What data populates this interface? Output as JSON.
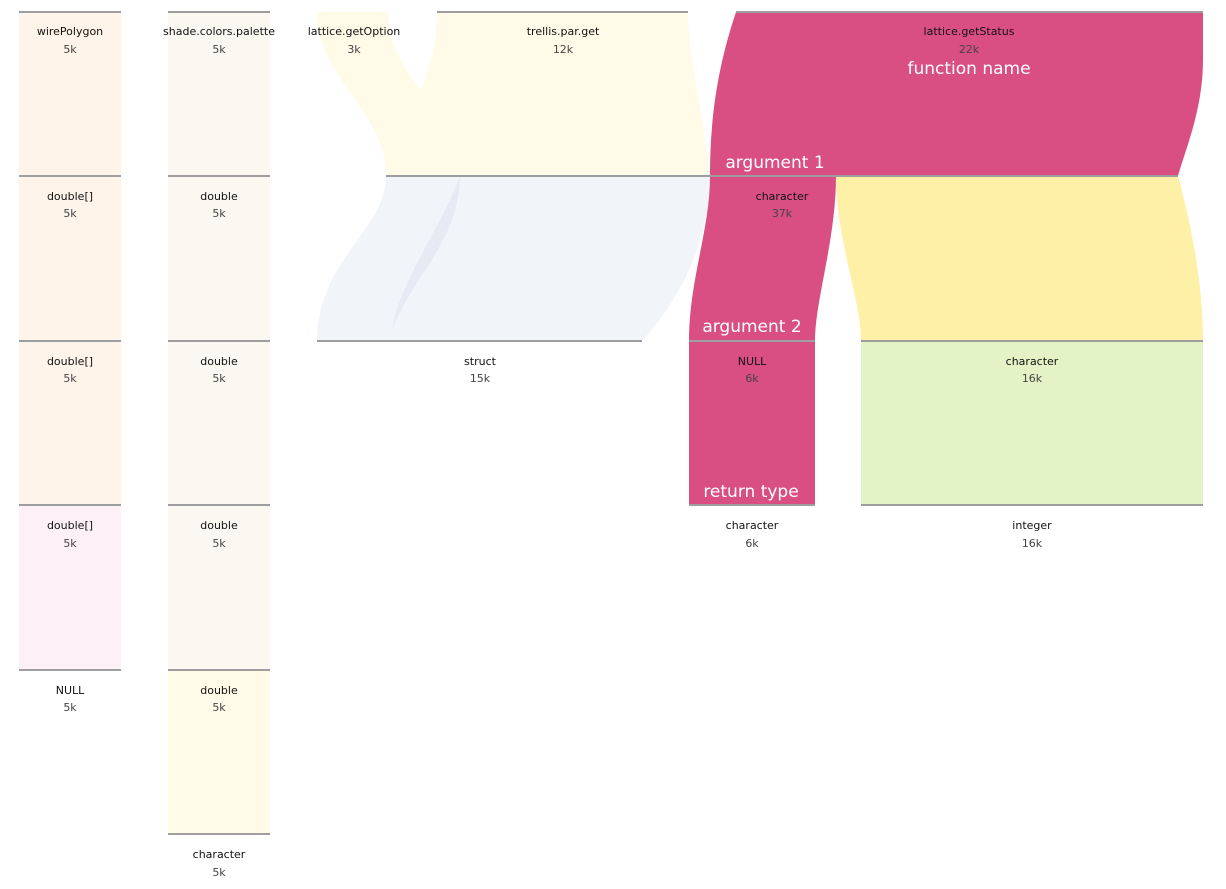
{
  "colors": {
    "highlight": "#d94f82",
    "peach": "#fff4ea",
    "cream": "#fbf8f1",
    "lightyellow": "#fffbe8",
    "pink": "#fdf0f6",
    "bluegray": "#f1f4f8",
    "yellow": "#fff0a8",
    "green": "#e4f3c6",
    "line": "#9e9e9e"
  },
  "level_labels": [
    "function name",
    "argument 1",
    "argument 2",
    "return type"
  ],
  "nodes": [
    {
      "id": "wirePolygon",
      "name": "wirePolygon",
      "value": "5k"
    },
    {
      "id": "w-double-1",
      "name": "double[]",
      "value": "5k"
    },
    {
      "id": "w-double-2",
      "name": "double[]",
      "value": "5k"
    },
    {
      "id": "w-double-3",
      "name": "double[]",
      "value": "5k"
    },
    {
      "id": "w-null",
      "name": "NULL",
      "value": "5k"
    },
    {
      "id": "shade",
      "name": "shade.colors.palette",
      "value": "5k"
    },
    {
      "id": "s-double-1",
      "name": "double",
      "value": "5k"
    },
    {
      "id": "s-double-2",
      "name": "double",
      "value": "5k"
    },
    {
      "id": "s-double-3",
      "name": "double",
      "value": "5k"
    },
    {
      "id": "s-double-4",
      "name": "double",
      "value": "5k"
    },
    {
      "id": "s-character",
      "name": "character",
      "value": "5k"
    },
    {
      "id": "getOption",
      "name": "lattice.getOption",
      "value": "3k"
    },
    {
      "id": "trellis",
      "name": "trellis.par.get",
      "value": "12k"
    },
    {
      "id": "getStatus",
      "name": "lattice.getStatus",
      "value": "22k"
    },
    {
      "id": "a1-character",
      "name": "character",
      "value": "37k"
    },
    {
      "id": "struct",
      "name": "struct",
      "value": "15k"
    },
    {
      "id": "a2-null",
      "name": "NULL",
      "value": "6k"
    },
    {
      "id": "a2-character",
      "name": "character",
      "value": "16k"
    },
    {
      "id": "rt-character",
      "name": "character",
      "value": "6k"
    },
    {
      "id": "rt-integer",
      "name": "integer",
      "value": "16k"
    }
  ]
}
